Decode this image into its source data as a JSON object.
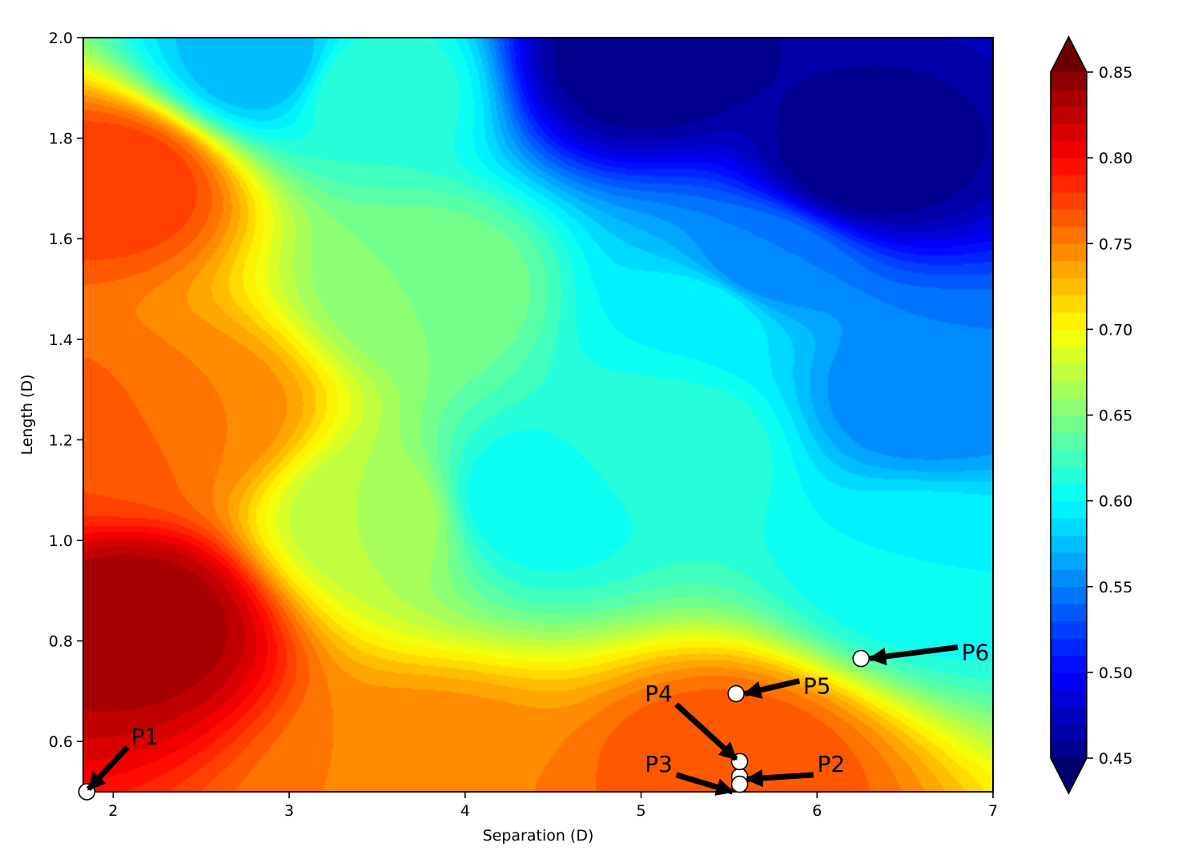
{
  "chart_data": {
    "type": "heatmap",
    "xlabel": "Separation (D)",
    "ylabel": "Length (D)",
    "xlim": [
      1.83,
      7
    ],
    "ylim": [
      0.5,
      2.0
    ],
    "x_ticks": [
      2,
      3,
      4,
      5,
      6,
      7
    ],
    "y_ticks": [
      0.6,
      0.8,
      1.0,
      1.2,
      1.4,
      1.6,
      1.8,
      2.0
    ],
    "x_tick_labels": [
      "2",
      "3",
      "4",
      "5",
      "6",
      "7"
    ],
    "y_tick_labels": [
      "0.6",
      "0.8",
      "1.0",
      "1.2",
      "1.4",
      "1.6",
      "1.8",
      "2.0"
    ],
    "colorbar": {
      "colormap": "jet",
      "min": 0.45,
      "max": 0.85,
      "extend": "both",
      "ticks": [
        0.45,
        0.5,
        0.55,
        0.6,
        0.65,
        0.7,
        0.75,
        0.8,
        0.85
      ],
      "tick_labels": [
        "0.45",
        "0.50",
        "0.55",
        "0.60",
        "0.65",
        "0.70",
        "0.75",
        "0.80",
        "0.85"
      ],
      "levels": 40
    },
    "surface_features": [
      {
        "x": 2.12,
        "y": 0.85,
        "value": 0.84
      },
      {
        "x": 2.03,
        "y": 1.72,
        "value": 0.78
      },
      {
        "x": 1.95,
        "y": 1.2,
        "value": 0.77
      },
      {
        "x": 2.45,
        "y": 1.25,
        "value": 0.75
      },
      {
        "x": 3.8,
        "y": 0.52,
        "value": 0.75
      },
      {
        "x": 5.5,
        "y": 0.55,
        "value": 0.77
      },
      {
        "x": 3.5,
        "y": 1.05,
        "value": 0.67
      },
      {
        "x": 3.8,
        "y": 1.5,
        "value": 0.65
      },
      {
        "x": 4.35,
        "y": 1.08,
        "value": 0.6
      },
      {
        "x": 3.45,
        "y": 1.9,
        "value": 0.62
      },
      {
        "x": 2.85,
        "y": 1.95,
        "value": 0.57
      },
      {
        "x": 5.0,
        "y": 1.95,
        "value": 0.45
      },
      {
        "x": 6.25,
        "y": 1.75,
        "value": 0.45
      },
      {
        "x": 5.7,
        "y": 1.55,
        "value": 0.55
      },
      {
        "x": 5.35,
        "y": 1.45,
        "value": 0.6
      },
      {
        "x": 5.15,
        "y": 1.2,
        "value": 0.62
      },
      {
        "x": 6.6,
        "y": 1.3,
        "value": 0.55
      },
      {
        "x": 6.6,
        "y": 0.95,
        "value": 0.6
      }
    ],
    "points": [
      {
        "label": "P1",
        "x": 1.85,
        "y": 0.5
      },
      {
        "label": "P2",
        "x": 5.56,
        "y": 0.53
      },
      {
        "label": "P3",
        "x": 5.56,
        "y": 0.515
      },
      {
        "label": "P4",
        "x": 5.56,
        "y": 0.56
      },
      {
        "label": "P5",
        "x": 5.54,
        "y": 0.695
      },
      {
        "label": "P6",
        "x": 6.25,
        "y": 0.765
      }
    ],
    "annotations": [
      {
        "label": "P1",
        "tx": 2.18,
        "ty": 0.595,
        "ax": 1.86,
        "ay": 0.505
      },
      {
        "label": "P2",
        "tx": 6.08,
        "ty": 0.54,
        "ax": 5.6,
        "ay": 0.525
      },
      {
        "label": "P3",
        "tx": 5.1,
        "ty": 0.54,
        "ax": 5.52,
        "ay": 0.5
      },
      {
        "label": "P4",
        "tx": 5.1,
        "ty": 0.68,
        "ax": 5.54,
        "ay": 0.565
      },
      {
        "label": "P5",
        "tx": 6.0,
        "ty": 0.695,
        "ax": 5.59,
        "ay": 0.695
      },
      {
        "label": "P6",
        "tx": 6.9,
        "ty": 0.762,
        "ax": 6.3,
        "ay": 0.765
      }
    ]
  }
}
